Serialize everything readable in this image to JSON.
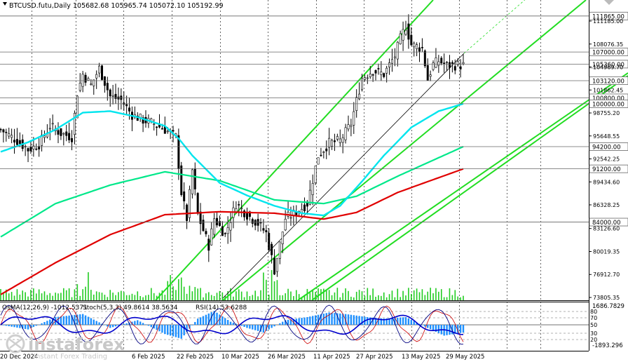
{
  "header": {
    "symbol": "BTCUSD.futu,Daily",
    "ohlc": "105682.68 105965.74 105072.10 105192.99"
  },
  "price_axis": {
    "ticks": [
      "111185.00",
      "108076.35",
      "104969.70",
      "101862.45",
      "98755.20",
      "95648.55",
      "92542.25",
      "89434.60",
      "86328.25",
      "83126.60",
      "80019.35",
      "76912.70",
      "73805.35"
    ]
  },
  "levels": [
    {
      "label": "111865.00",
      "value": 111865
    },
    {
      "label": "107000.00",
      "value": 107000
    },
    {
      "label": "105360.00",
      "value": 105360
    },
    {
      "label": "103120.00",
      "value": 103120
    },
    {
      "label": "100800.00",
      "value": 100800
    },
    {
      "label": "100000.00",
      "value": 100000
    },
    {
      "label": "94200.00",
      "value": 94200
    },
    {
      "label": "91200.00",
      "value": 91200
    },
    {
      "label": "84000.00",
      "value": 84000
    }
  ],
  "date_axis": {
    "labels": [
      "20 Dec 2024",
      "6 Feb 2025",
      "22 Feb 2025",
      "10 Mar 2025",
      "26 Mar 2025",
      "11 Apr 2025",
      "27 Apr 2025",
      "13 May 2025",
      "29 May 2025"
    ]
  },
  "indicator": {
    "legend_osma": "OsMA(12,26,9) -1012.5371",
    "legend_stoch": "Stoch(5,3,3) 49.8614 38.5634",
    "legend_rsi": "RSI(14) 53.6288",
    "scale_top": "1686.7829",
    "scale_bottom": "-1893.296",
    "levels": [
      "80",
      "70",
      "50",
      "30",
      "20"
    ]
  },
  "watermark": {
    "brand": "instaforex",
    "tagline": "Instant Forex Trading"
  },
  "colors": {
    "ema_fast": "#00e5ee",
    "ema_mid": "#00e88a",
    "ema_slow": "#e00000",
    "channel": "#22dd22",
    "osma": "#1e90ff",
    "signal": "#0000cc",
    "rsi": "#000080",
    "volume": "#22cc22"
  }
}
